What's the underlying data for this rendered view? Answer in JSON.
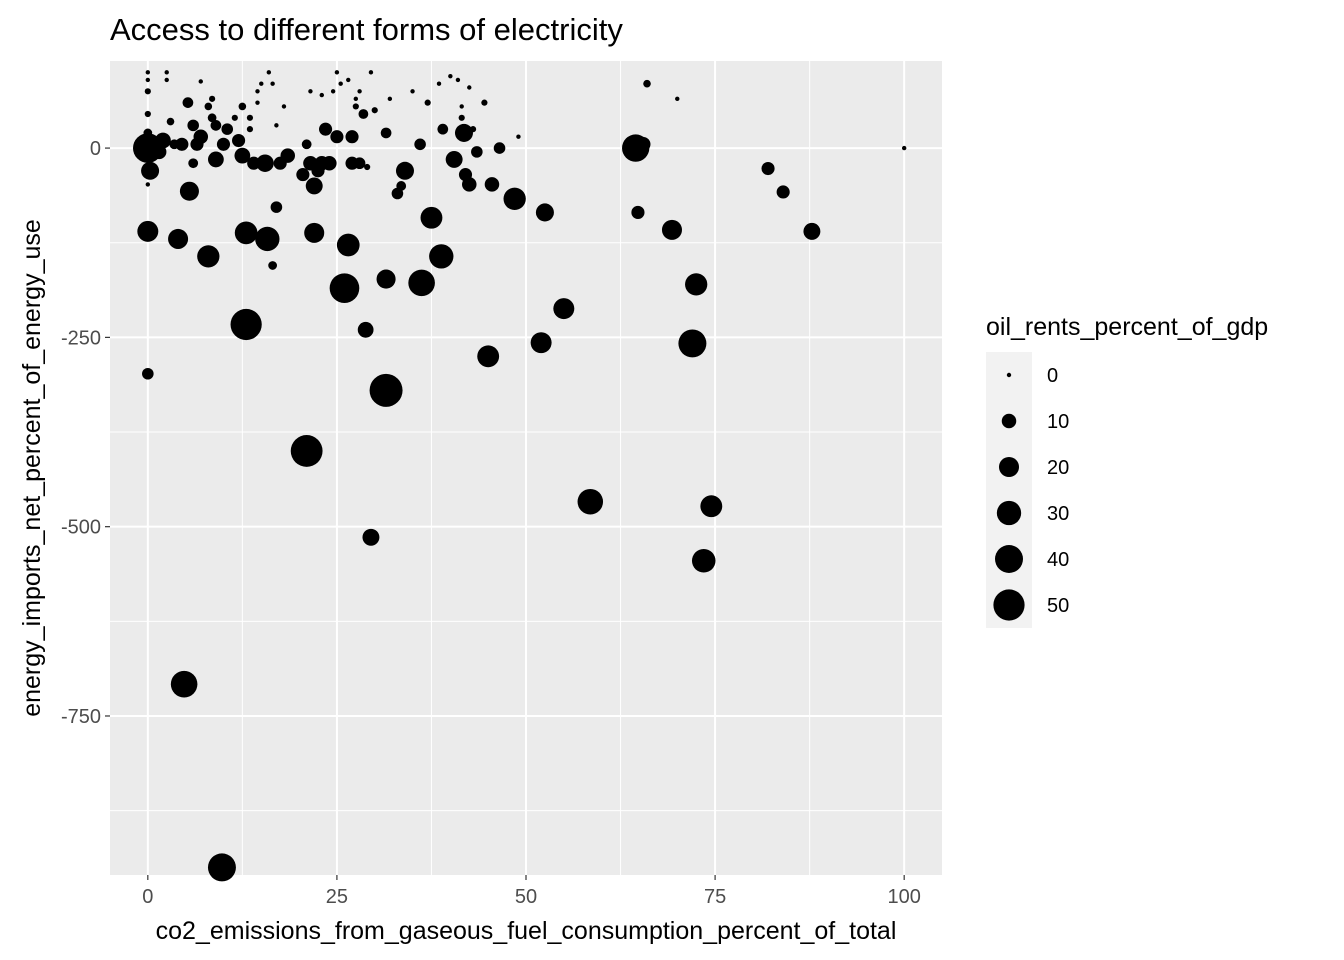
{
  "chart_data": {
    "type": "scatter",
    "title": "Access to different forms of electricity",
    "xlabel": "co2_emissions_from_gaseous_fuel_consumption_percent_of_total",
    "ylabel": "energy_imports_net_percent_of_energy_use",
    "xlim": [
      -5,
      105
    ],
    "ylim": [
      -960,
      115
    ],
    "x_ticks": [
      0,
      25,
      50,
      75,
      100
    ],
    "x_tick_labels": [
      "0",
      "25",
      "50",
      "75",
      "100"
    ],
    "y_ticks": [
      0,
      -250,
      -500,
      -750
    ],
    "y_tick_labels": [
      "0",
      "-250",
      "-500",
      "-750"
    ],
    "grid": true,
    "point_color": "#000000",
    "panel_background": "#ebebeb",
    "size_legend": {
      "title": "oil_rents_percent_of_gdp",
      "placement": "right",
      "values": [
        0,
        10,
        20,
        30,
        40,
        50
      ],
      "labels": [
        "0",
        "10",
        "20",
        "30",
        "40",
        "50"
      ]
    },
    "points": [
      {
        "x": 0,
        "y": -298,
        "size": 6
      },
      {
        "x": 0,
        "y": 0,
        "size": 45
      },
      {
        "x": 0,
        "y": -110,
        "size": 22
      },
      {
        "x": 0.3,
        "y": -30,
        "size": 16
      },
      {
        "x": 0,
        "y": 100,
        "size": 0
      },
      {
        "x": 0,
        "y": 90,
        "size": 0
      },
      {
        "x": 0,
        "y": 75,
        "size": 1
      },
      {
        "x": 0,
        "y": 45,
        "size": 1
      },
      {
        "x": 0,
        "y": 20,
        "size": 3
      },
      {
        "x": 0,
        "y": -10,
        "size": 8
      },
      {
        "x": 0,
        "y": -48,
        "size": 0
      },
      {
        "x": 1,
        "y": 5,
        "size": 10
      },
      {
        "x": 1.5,
        "y": -5,
        "size": 10
      },
      {
        "x": 2,
        "y": 10,
        "size": 12
      },
      {
        "x": 2.5,
        "y": 100,
        "size": 0
      },
      {
        "x": 2.5,
        "y": 90,
        "size": 0
      },
      {
        "x": 3,
        "y": 35,
        "size": 2
      },
      {
        "x": 3.5,
        "y": 5,
        "size": 4
      },
      {
        "x": 4,
        "y": -120,
        "size": 20
      },
      {
        "x": 4.5,
        "y": 5,
        "size": 8
      },
      {
        "x": 4.8,
        "y": -708,
        "size": 36
      },
      {
        "x": 5.3,
        "y": 60,
        "size": 5
      },
      {
        "x": 5.5,
        "y": -57,
        "size": 18
      },
      {
        "x": 6,
        "y": -20,
        "size": 4
      },
      {
        "x": 6,
        "y": 30,
        "size": 6
      },
      {
        "x": 6.5,
        "y": 5,
        "size": 8
      },
      {
        "x": 7,
        "y": 15,
        "size": 10
      },
      {
        "x": 7,
        "y": 88,
        "size": 0
      },
      {
        "x": 8,
        "y": -143,
        "size": 25
      },
      {
        "x": 8,
        "y": 55,
        "size": 2
      },
      {
        "x": 8.5,
        "y": 65,
        "size": 1
      },
      {
        "x": 8.5,
        "y": 40,
        "size": 3
      },
      {
        "x": 9,
        "y": -15,
        "size": 12
      },
      {
        "x": 9,
        "y": 30,
        "size": 5
      },
      {
        "x": 9.8,
        "y": -950,
        "size": 40
      },
      {
        "x": 10,
        "y": 5,
        "size": 8
      },
      {
        "x": 10.5,
        "y": 25,
        "size": 6
      },
      {
        "x": 11.5,
        "y": 40,
        "size": 1
      },
      {
        "x": 12,
        "y": 10,
        "size": 8
      },
      {
        "x": 12.5,
        "y": -10,
        "size": 12
      },
      {
        "x": 12.5,
        "y": 55,
        "size": 2
      },
      {
        "x": 13,
        "y": -233,
        "size": 50
      },
      {
        "x": 13,
        "y": -112,
        "size": 26
      },
      {
        "x": 13.5,
        "y": 40,
        "size": 1
      },
      {
        "x": 13.5,
        "y": 25,
        "size": 1
      },
      {
        "x": 14,
        "y": -20,
        "size": 8
      },
      {
        "x": 14.5,
        "y": 75,
        "size": 0
      },
      {
        "x": 14.5,
        "y": 60,
        "size": 0
      },
      {
        "x": 15,
        "y": 85,
        "size": 0
      },
      {
        "x": 15.5,
        "y": -20,
        "size": 15
      },
      {
        "x": 15.8,
        "y": -120,
        "size": 30
      },
      {
        "x": 16,
        "y": 100,
        "size": 0
      },
      {
        "x": 16.5,
        "y": 85,
        "size": 0
      },
      {
        "x": 16.5,
        "y": -155,
        "size": 3
      },
      {
        "x": 17,
        "y": 30,
        "size": 0
      },
      {
        "x": 17,
        "y": -78,
        "size": 6
      },
      {
        "x": 17.5,
        "y": -20,
        "size": 8
      },
      {
        "x": 18,
        "y": 55,
        "size": 0
      },
      {
        "x": 18.5,
        "y": -10,
        "size": 10
      },
      {
        "x": 20.5,
        "y": -35,
        "size": 8
      },
      {
        "x": 21,
        "y": -400,
        "size": 52
      },
      {
        "x": 21,
        "y": 5,
        "size": 4
      },
      {
        "x": 21.5,
        "y": 75,
        "size": 0
      },
      {
        "x": 21.5,
        "y": -20,
        "size": 10
      },
      {
        "x": 22,
        "y": -50,
        "size": 14
      },
      {
        "x": 22,
        "y": -112,
        "size": 20
      },
      {
        "x": 22.5,
        "y": -30,
        "size": 8
      },
      {
        "x": 23,
        "y": -20,
        "size": 10
      },
      {
        "x": 23,
        "y": 70,
        "size": 0
      },
      {
        "x": 23.5,
        "y": 25,
        "size": 8
      },
      {
        "x": 24,
        "y": -20,
        "size": 10
      },
      {
        "x": 24.5,
        "y": 75,
        "size": 0
      },
      {
        "x": 25,
        "y": 15,
        "size": 8
      },
      {
        "x": 25,
        "y": 100,
        "size": 0
      },
      {
        "x": 25.5,
        "y": 85,
        "size": 0
      },
      {
        "x": 26,
        "y": -185,
        "size": 45
      },
      {
        "x": 26.5,
        "y": -128,
        "size": 26
      },
      {
        "x": 26.5,
        "y": 90,
        "size": 0
      },
      {
        "x": 27,
        "y": -20,
        "size": 8
      },
      {
        "x": 27,
        "y": 15,
        "size": 8
      },
      {
        "x": 27.5,
        "y": 65,
        "size": 0
      },
      {
        "x": 27.5,
        "y": 55,
        "size": 1
      },
      {
        "x": 28,
        "y": 75,
        "size": 0
      },
      {
        "x": 28,
        "y": -20,
        "size": 6
      },
      {
        "x": 28.5,
        "y": 45,
        "size": 4
      },
      {
        "x": 28.8,
        "y": -240,
        "size": 12
      },
      {
        "x": 29,
        "y": -25,
        "size": 1
      },
      {
        "x": 29.5,
        "y": -514,
        "size": 14
      },
      {
        "x": 29.5,
        "y": 100,
        "size": 0
      },
      {
        "x": 30,
        "y": 50,
        "size": 1
      },
      {
        "x": 31.5,
        "y": -320,
        "size": 56
      },
      {
        "x": 31.5,
        "y": -173,
        "size": 18
      },
      {
        "x": 31.5,
        "y": 20,
        "size": 5
      },
      {
        "x": 32,
        "y": 65,
        "size": 0
      },
      {
        "x": 33,
        "y": -60,
        "size": 6
      },
      {
        "x": 33.5,
        "y": -50,
        "size": 4
      },
      {
        "x": 34,
        "y": -30,
        "size": 16
      },
      {
        "x": 35,
        "y": 75,
        "size": 0
      },
      {
        "x": 36,
        "y": 5,
        "size": 6
      },
      {
        "x": 36.2,
        "y": -178,
        "size": 36
      },
      {
        "x": 37,
        "y": 60,
        "size": 1
      },
      {
        "x": 37.5,
        "y": -92,
        "size": 24
      },
      {
        "x": 38.5,
        "y": 85,
        "size": 0
      },
      {
        "x": 38.8,
        "y": -143,
        "size": 30
      },
      {
        "x": 39,
        "y": 25,
        "size": 5
      },
      {
        "x": 40,
        "y": 95,
        "size": 0
      },
      {
        "x": 40.5,
        "y": -15,
        "size": 14
      },
      {
        "x": 41,
        "y": 90,
        "size": 0
      },
      {
        "x": 41.5,
        "y": 55,
        "size": 0
      },
      {
        "x": 41.5,
        "y": 40,
        "size": 1
      },
      {
        "x": 41.8,
        "y": 20,
        "size": 16
      },
      {
        "x": 42,
        "y": -35,
        "size": 8
      },
      {
        "x": 42.5,
        "y": 80,
        "size": 0
      },
      {
        "x": 42.5,
        "y": -48,
        "size": 10
      },
      {
        "x": 43,
        "y": 25,
        "size": 1
      },
      {
        "x": 43.5,
        "y": -5,
        "size": 6
      },
      {
        "x": 44.5,
        "y": 60,
        "size": 1
      },
      {
        "x": 45,
        "y": -275,
        "size": 24
      },
      {
        "x": 45.5,
        "y": -48,
        "size": 10
      },
      {
        "x": 46.5,
        "y": 0,
        "size": 6
      },
      {
        "x": 48.5,
        "y": -67,
        "size": 25
      },
      {
        "x": 49,
        "y": 15,
        "size": 0
      },
      {
        "x": 52,
        "y": -257,
        "size": 22
      },
      {
        "x": 52.5,
        "y": -85,
        "size": 16
      },
      {
        "x": 55,
        "y": -212,
        "size": 22
      },
      {
        "x": 58.5,
        "y": -467,
        "size": 33
      },
      {
        "x": 64.5,
        "y": 0,
        "size": 38
      },
      {
        "x": 64.8,
        "y": -85,
        "size": 8
      },
      {
        "x": 65.5,
        "y": 5,
        "size": 10
      },
      {
        "x": 66,
        "y": 85,
        "size": 2
      },
      {
        "x": 69.3,
        "y": -108,
        "size": 20
      },
      {
        "x": 70,
        "y": 65,
        "size": 0
      },
      {
        "x": 72,
        "y": -258,
        "size": 40
      },
      {
        "x": 72.5,
        "y": -180,
        "size": 25
      },
      {
        "x": 73.5,
        "y": -545,
        "size": 28
      },
      {
        "x": 74.5,
        "y": -473,
        "size": 24
      },
      {
        "x": 82,
        "y": -27,
        "size": 8
      },
      {
        "x": 84,
        "y": -58,
        "size": 8
      },
      {
        "x": 87.8,
        "y": -110,
        "size": 14
      },
      {
        "x": 100,
        "y": 0,
        "size": 0
      }
    ]
  }
}
